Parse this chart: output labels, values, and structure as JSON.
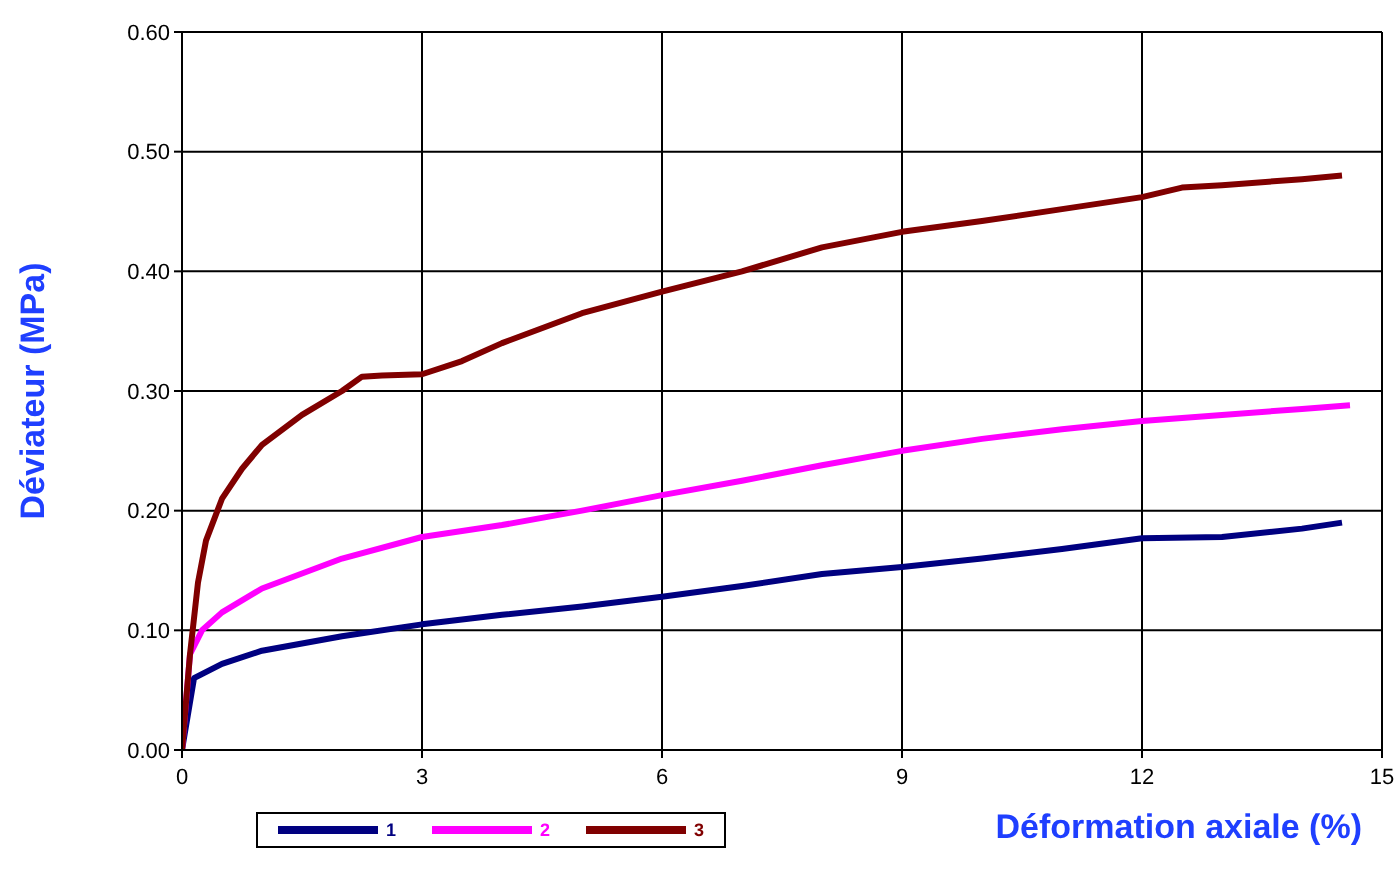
{
  "chart_data": {
    "type": "line",
    "xlabel": "Déformation axiale (%)",
    "ylabel": "Déviateur (MPa)",
    "xlim": [
      0,
      15
    ],
    "xticks": [
      0,
      3,
      6,
      9,
      12,
      15
    ],
    "ylim": [
      0,
      0.6
    ],
    "yticks": [
      {
        "value": 0,
        "label": "0.00"
      },
      {
        "value": 0.1,
        "label": "0.10"
      },
      {
        "value": 0.2,
        "label": "0.20"
      },
      {
        "value": 0.3,
        "label": "0.30"
      },
      {
        "value": 0.4,
        "label": "0.40"
      },
      {
        "value": 0.5,
        "label": "0.50"
      },
      {
        "value": 0.6,
        "label": "0.60"
      }
    ],
    "grid": true,
    "legend": "bottom left",
    "marker": "none",
    "line_style": "solid",
    "series": [
      {
        "name": "1",
        "color": "#000080",
        "x": [
          0,
          0.15,
          0.5,
          1,
          2,
          3,
          4,
          5,
          6,
          7,
          8,
          9,
          10,
          11,
          12,
          13,
          14,
          14.5
        ],
        "values": [
          0,
          0.06,
          0.072,
          0.083,
          0.095,
          0.105,
          0.113,
          0.12,
          0.128,
          0.137,
          0.147,
          0.153,
          0.16,
          0.168,
          0.177,
          0.178,
          0.185,
          0.19
        ]
      },
      {
        "name": "2",
        "color": "#ff00ff",
        "x": [
          0,
          0.1,
          0.25,
          0.5,
          1,
          2,
          3,
          4,
          5,
          6,
          7,
          8,
          9,
          10,
          11,
          12,
          13,
          14,
          14.6
        ],
        "values": [
          0,
          0.08,
          0.1,
          0.115,
          0.135,
          0.16,
          0.178,
          0.188,
          0.2,
          0.213,
          0.225,
          0.238,
          0.25,
          0.26,
          0.268,
          0.275,
          0.28,
          0.285,
          0.288
        ]
      },
      {
        "name": "3",
        "color": "#800000",
        "x": [
          0,
          0.1,
          0.2,
          0.3,
          0.5,
          0.75,
          1,
          1.5,
          2,
          2.25,
          2.5,
          3,
          3.5,
          4,
          5,
          6,
          7,
          8,
          9,
          10,
          11,
          12,
          12.5,
          13,
          14,
          14.5
        ],
        "values": [
          0,
          0.08,
          0.14,
          0.175,
          0.21,
          0.235,
          0.255,
          0.28,
          0.3,
          0.312,
          0.313,
          0.314,
          0.325,
          0.34,
          0.365,
          0.383,
          0.4,
          0.42,
          0.433,
          0.442,
          0.452,
          0.462,
          0.47,
          0.472,
          0.477,
          0.48
        ]
      }
    ]
  }
}
